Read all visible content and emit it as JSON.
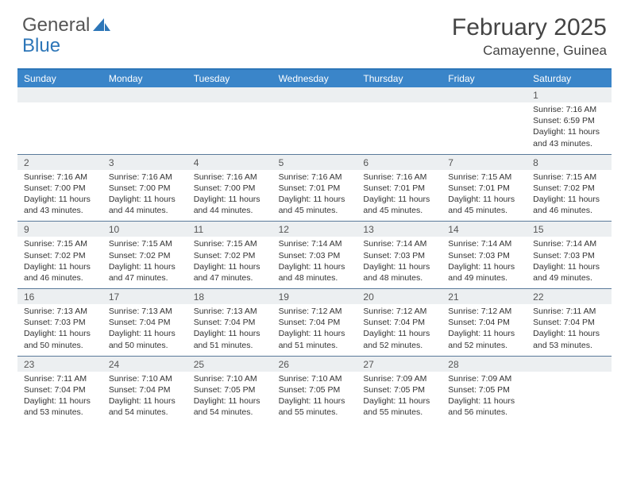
{
  "logo": {
    "word1": "General",
    "word2": "Blue"
  },
  "title": "February 2025",
  "location": "Camayenne, Guinea",
  "colors": {
    "header_bg": "#3a85c9",
    "header_border": "#2d76b8",
    "daynum_bg": "#eceff1",
    "row_divider": "#5a7a9a",
    "text": "#333333",
    "title_text": "#444444",
    "logo_gray": "#555555",
    "logo_blue": "#2d76b8"
  },
  "day_names": [
    "Sunday",
    "Monday",
    "Tuesday",
    "Wednesday",
    "Thursday",
    "Friday",
    "Saturday"
  ],
  "weeks": [
    [
      {
        "num": "",
        "lines": []
      },
      {
        "num": "",
        "lines": []
      },
      {
        "num": "",
        "lines": []
      },
      {
        "num": "",
        "lines": []
      },
      {
        "num": "",
        "lines": []
      },
      {
        "num": "",
        "lines": []
      },
      {
        "num": "1",
        "lines": [
          "Sunrise: 7:16 AM",
          "Sunset: 6:59 PM",
          "Daylight: 11 hours and 43 minutes."
        ]
      }
    ],
    [
      {
        "num": "2",
        "lines": [
          "Sunrise: 7:16 AM",
          "Sunset: 7:00 PM",
          "Daylight: 11 hours and 43 minutes."
        ]
      },
      {
        "num": "3",
        "lines": [
          "Sunrise: 7:16 AM",
          "Sunset: 7:00 PM",
          "Daylight: 11 hours and 44 minutes."
        ]
      },
      {
        "num": "4",
        "lines": [
          "Sunrise: 7:16 AM",
          "Sunset: 7:00 PM",
          "Daylight: 11 hours and 44 minutes."
        ]
      },
      {
        "num": "5",
        "lines": [
          "Sunrise: 7:16 AM",
          "Sunset: 7:01 PM",
          "Daylight: 11 hours and 45 minutes."
        ]
      },
      {
        "num": "6",
        "lines": [
          "Sunrise: 7:16 AM",
          "Sunset: 7:01 PM",
          "Daylight: 11 hours and 45 minutes."
        ]
      },
      {
        "num": "7",
        "lines": [
          "Sunrise: 7:15 AM",
          "Sunset: 7:01 PM",
          "Daylight: 11 hours and 45 minutes."
        ]
      },
      {
        "num": "8",
        "lines": [
          "Sunrise: 7:15 AM",
          "Sunset: 7:02 PM",
          "Daylight: 11 hours and 46 minutes."
        ]
      }
    ],
    [
      {
        "num": "9",
        "lines": [
          "Sunrise: 7:15 AM",
          "Sunset: 7:02 PM",
          "Daylight: 11 hours and 46 minutes."
        ]
      },
      {
        "num": "10",
        "lines": [
          "Sunrise: 7:15 AM",
          "Sunset: 7:02 PM",
          "Daylight: 11 hours and 47 minutes."
        ]
      },
      {
        "num": "11",
        "lines": [
          "Sunrise: 7:15 AM",
          "Sunset: 7:02 PM",
          "Daylight: 11 hours and 47 minutes."
        ]
      },
      {
        "num": "12",
        "lines": [
          "Sunrise: 7:14 AM",
          "Sunset: 7:03 PM",
          "Daylight: 11 hours and 48 minutes."
        ]
      },
      {
        "num": "13",
        "lines": [
          "Sunrise: 7:14 AM",
          "Sunset: 7:03 PM",
          "Daylight: 11 hours and 48 minutes."
        ]
      },
      {
        "num": "14",
        "lines": [
          "Sunrise: 7:14 AM",
          "Sunset: 7:03 PM",
          "Daylight: 11 hours and 49 minutes."
        ]
      },
      {
        "num": "15",
        "lines": [
          "Sunrise: 7:14 AM",
          "Sunset: 7:03 PM",
          "Daylight: 11 hours and 49 minutes."
        ]
      }
    ],
    [
      {
        "num": "16",
        "lines": [
          "Sunrise: 7:13 AM",
          "Sunset: 7:03 PM",
          "Daylight: 11 hours and 50 minutes."
        ]
      },
      {
        "num": "17",
        "lines": [
          "Sunrise: 7:13 AM",
          "Sunset: 7:04 PM",
          "Daylight: 11 hours and 50 minutes."
        ]
      },
      {
        "num": "18",
        "lines": [
          "Sunrise: 7:13 AM",
          "Sunset: 7:04 PM",
          "Daylight: 11 hours and 51 minutes."
        ]
      },
      {
        "num": "19",
        "lines": [
          "Sunrise: 7:12 AM",
          "Sunset: 7:04 PM",
          "Daylight: 11 hours and 51 minutes."
        ]
      },
      {
        "num": "20",
        "lines": [
          "Sunrise: 7:12 AM",
          "Sunset: 7:04 PM",
          "Daylight: 11 hours and 52 minutes."
        ]
      },
      {
        "num": "21",
        "lines": [
          "Sunrise: 7:12 AM",
          "Sunset: 7:04 PM",
          "Daylight: 11 hours and 52 minutes."
        ]
      },
      {
        "num": "22",
        "lines": [
          "Sunrise: 7:11 AM",
          "Sunset: 7:04 PM",
          "Daylight: 11 hours and 53 minutes."
        ]
      }
    ],
    [
      {
        "num": "23",
        "lines": [
          "Sunrise: 7:11 AM",
          "Sunset: 7:04 PM",
          "Daylight: 11 hours and 53 minutes."
        ]
      },
      {
        "num": "24",
        "lines": [
          "Sunrise: 7:10 AM",
          "Sunset: 7:04 PM",
          "Daylight: 11 hours and 54 minutes."
        ]
      },
      {
        "num": "25",
        "lines": [
          "Sunrise: 7:10 AM",
          "Sunset: 7:05 PM",
          "Daylight: 11 hours and 54 minutes."
        ]
      },
      {
        "num": "26",
        "lines": [
          "Sunrise: 7:10 AM",
          "Sunset: 7:05 PM",
          "Daylight: 11 hours and 55 minutes."
        ]
      },
      {
        "num": "27",
        "lines": [
          "Sunrise: 7:09 AM",
          "Sunset: 7:05 PM",
          "Daylight: 11 hours and 55 minutes."
        ]
      },
      {
        "num": "28",
        "lines": [
          "Sunrise: 7:09 AM",
          "Sunset: 7:05 PM",
          "Daylight: 11 hours and 56 minutes."
        ]
      },
      {
        "num": "",
        "lines": []
      }
    ]
  ]
}
